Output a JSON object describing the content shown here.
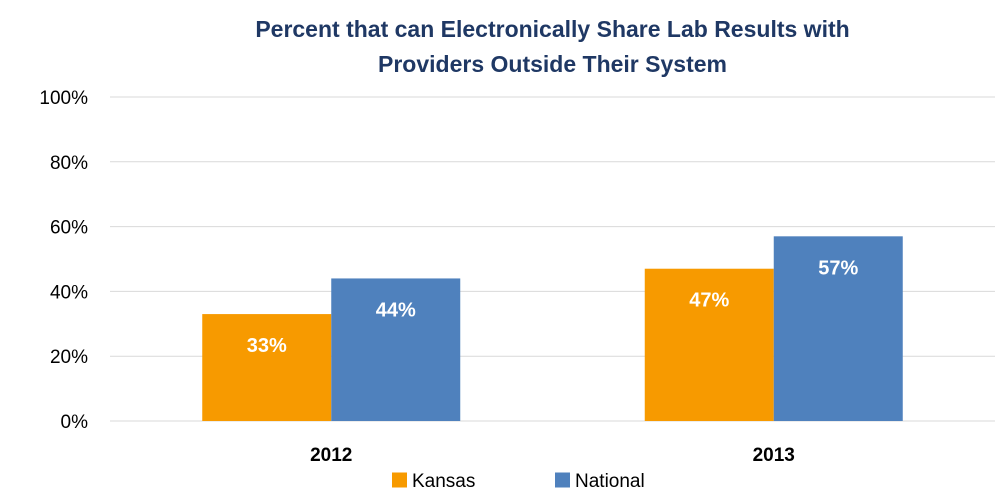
{
  "chart_data": {
    "type": "bar",
    "title_lines": [
      "Percent that can Electronically Share Lab Results with",
      "Providers Outside Their System"
    ],
    "categories": [
      "2012",
      "2013"
    ],
    "series": [
      {
        "name": "Kansas",
        "color": "#f79a00",
        "values": [
          33,
          47
        ],
        "labels": [
          "33%",
          "47%"
        ]
      },
      {
        "name": "National",
        "color": "#4f81bd",
        "values": [
          44,
          57
        ],
        "labels": [
          "44%",
          "57%"
        ]
      }
    ],
    "ylim": [
      0,
      100
    ],
    "yticks": [
      0,
      20,
      40,
      60,
      80,
      100
    ],
    "ytick_labels": [
      "0%",
      "20%",
      "40%",
      "60%",
      "80%",
      "100%"
    ],
    "grid": true,
    "legend_position": "bottom",
    "gridline_color": "#d9d9d9"
  }
}
